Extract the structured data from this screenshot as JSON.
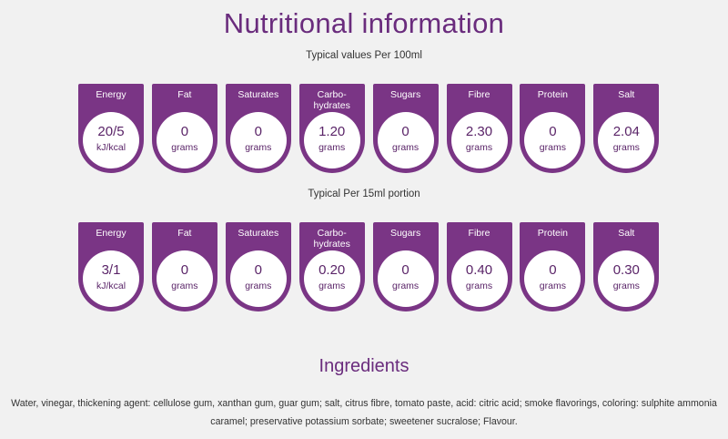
{
  "title": "Nutritional information",
  "sections": [
    {
      "subtitle": "Typical values Per 100ml",
      "items": [
        {
          "label": "Energy",
          "value": "20/5",
          "unit": "kJ/kcal"
        },
        {
          "label": "Fat",
          "value": "0",
          "unit": "grams"
        },
        {
          "label": "Saturates",
          "value": "0",
          "unit": "grams"
        },
        {
          "label": "Carbo-\nhydrates",
          "value": "1.20",
          "unit": "grams"
        },
        {
          "label": "Sugars",
          "value": "0",
          "unit": "grams"
        },
        {
          "label": "Fibre",
          "value": "2.30",
          "unit": "grams"
        },
        {
          "label": "Protein",
          "value": "0",
          "unit": "grams"
        },
        {
          "label": "Salt",
          "value": "2.04",
          "unit": "grams"
        }
      ]
    },
    {
      "subtitle": "Typical Per 15ml portion",
      "items": [
        {
          "label": "Energy",
          "value": "3/1",
          "unit": "kJ/kcal"
        },
        {
          "label": "Fat",
          "value": "0",
          "unit": "grams"
        },
        {
          "label": "Saturates",
          "value": "0",
          "unit": "grams"
        },
        {
          "label": "Carbo-\nhydrates",
          "value": "0.20",
          "unit": "grams"
        },
        {
          "label": "Sugars",
          "value": "0",
          "unit": "grams"
        },
        {
          "label": "Fibre",
          "value": "0.40",
          "unit": "grams"
        },
        {
          "label": "Protein",
          "value": "0",
          "unit": "grams"
        },
        {
          "label": "Salt",
          "value": "0.30",
          "unit": "grams"
        }
      ]
    }
  ],
  "ingredients": {
    "title": "Ingredients",
    "text": "Water, vinegar, thickening agent: cellulose gum, xanthan gum, guar gum; salt, citrus fibre, tomato paste, acid: citric acid; smoke flavorings, coloring: sulphite ammonia caramel; preservative potassium sorbate; sweetener sucralose; Flavour."
  },
  "colors": {
    "accent": "#7a3585",
    "title": "#6a2c7d",
    "background": "#f1f1f1"
  }
}
